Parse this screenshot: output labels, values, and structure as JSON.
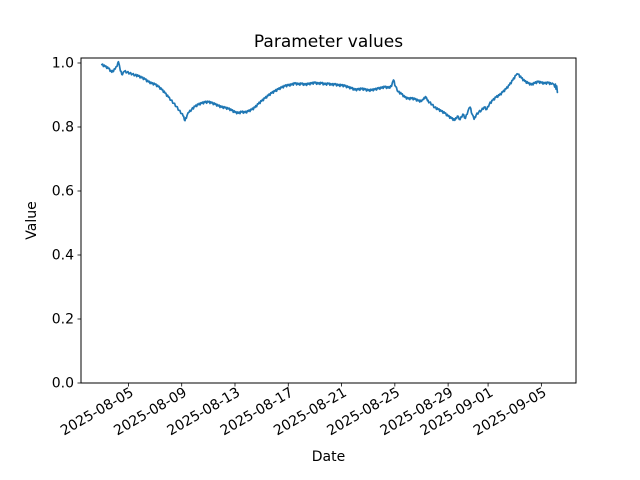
{
  "figure": {
    "title": "Parameter values",
    "xlabel": "Date",
    "ylabel": "Value"
  },
  "chart_data": {
    "type": "line",
    "title": "Parameter values",
    "xlabel": "Date",
    "ylabel": "Value",
    "legend": "none",
    "grid": false,
    "line_color": "#1f77b4",
    "background_color": "#ffffff",
    "x_axis_type": "date",
    "x_origin_date": "2025-08-03",
    "xlim_days": [
      -1.56,
      35.6
    ],
    "ylim": [
      0.0,
      1.0156
    ],
    "y_ticks": [
      {
        "label": "0.0",
        "value": 0.0
      },
      {
        "label": "0.2",
        "value": 0.2
      },
      {
        "label": "0.4",
        "value": 0.4
      },
      {
        "label": "0.6",
        "value": 0.6
      },
      {
        "label": "0.8",
        "value": 0.8
      },
      {
        "label": "1.0",
        "value": 1.0
      }
    ],
    "x_ticks": [
      {
        "label": "2025-08-05",
        "day": 2
      },
      {
        "label": "2025-08-09",
        "day": 6
      },
      {
        "label": "2025-08-13",
        "day": 10
      },
      {
        "label": "2025-08-17",
        "day": 14
      },
      {
        "label": "2025-08-21",
        "day": 18
      },
      {
        "label": "2025-08-25",
        "day": 22
      },
      {
        "label": "2025-08-29",
        "day": 26
      },
      {
        "label": "2025-09-01",
        "day": 29
      },
      {
        "label": "2025-09-05",
        "day": 33
      }
    ],
    "x_tick_rotation_deg": 30,
    "noise_amplitude": 0.003,
    "series": [
      {
        "name": "parameter-value",
        "points": [
          [
            0,
            0.995
          ],
          [
            0.25,
            0.989
          ],
          [
            0.5,
            0.983
          ],
          [
            0.75,
            0.971
          ],
          [
            1,
            0.981
          ],
          [
            1.15,
            0.99
          ],
          [
            1.25,
            1.004
          ],
          [
            1.4,
            0.975
          ],
          [
            1.55,
            0.963
          ],
          [
            1.7,
            0.974
          ],
          [
            1.9,
            0.971
          ],
          [
            2.1,
            0.968
          ],
          [
            2.3,
            0.965
          ],
          [
            2.5,
            0.962
          ],
          [
            2.75,
            0.959
          ],
          [
            3,
            0.954
          ],
          [
            3.25,
            0.949
          ],
          [
            3.5,
            0.941
          ],
          [
            3.75,
            0.936
          ],
          [
            4,
            0.933
          ],
          [
            4.25,
            0.926
          ],
          [
            4.5,
            0.917
          ],
          [
            4.75,
            0.906
          ],
          [
            5,
            0.893
          ],
          [
            5.2,
            0.884
          ],
          [
            5.4,
            0.874
          ],
          [
            5.6,
            0.864
          ],
          [
            5.8,
            0.852
          ],
          [
            6,
            0.842
          ],
          [
            6.1,
            0.835
          ],
          [
            6.25,
            0.82
          ],
          [
            6.4,
            0.836
          ],
          [
            6.55,
            0.846
          ],
          [
            6.75,
            0.855
          ],
          [
            7,
            0.864
          ],
          [
            7.25,
            0.87
          ],
          [
            7.5,
            0.874
          ],
          [
            7.75,
            0.877
          ],
          [
            8,
            0.878
          ],
          [
            8.25,
            0.875
          ],
          [
            8.5,
            0.871
          ],
          [
            8.75,
            0.866
          ],
          [
            9,
            0.862
          ],
          [
            9.25,
            0.86
          ],
          [
            9.5,
            0.857
          ],
          [
            9.75,
            0.852
          ],
          [
            10,
            0.846
          ],
          [
            10.25,
            0.843
          ],
          [
            10.5,
            0.847
          ],
          [
            10.75,
            0.845
          ],
          [
            11,
            0.849
          ],
          [
            11.25,
            0.854
          ],
          [
            11.5,
            0.861
          ],
          [
            11.75,
            0.872
          ],
          [
            12,
            0.881
          ],
          [
            12.25,
            0.89
          ],
          [
            12.5,
            0.898
          ],
          [
            12.75,
            0.906
          ],
          [
            13,
            0.912
          ],
          [
            13.25,
            0.918
          ],
          [
            13.5,
            0.923
          ],
          [
            13.75,
            0.928
          ],
          [
            14,
            0.93
          ],
          [
            14.25,
            0.932
          ],
          [
            14.5,
            0.936
          ],
          [
            14.75,
            0.933
          ],
          [
            15,
            0.935
          ],
          [
            15.25,
            0.932
          ],
          [
            15.5,
            0.934
          ],
          [
            15.75,
            0.936
          ],
          [
            16,
            0.938
          ],
          [
            16.25,
            0.935
          ],
          [
            16.5,
            0.937
          ],
          [
            16.75,
            0.933
          ],
          [
            17,
            0.935
          ],
          [
            17.25,
            0.932
          ],
          [
            17.5,
            0.933
          ],
          [
            17.75,
            0.93
          ],
          [
            18,
            0.93
          ],
          [
            18.25,
            0.928
          ],
          [
            18.5,
            0.924
          ],
          [
            18.75,
            0.921
          ],
          [
            19,
            0.916
          ],
          [
            19.25,
            0.917
          ],
          [
            19.5,
            0.919
          ],
          [
            19.75,
            0.917
          ],
          [
            20,
            0.914
          ],
          [
            20.25,
            0.915
          ],
          [
            20.5,
            0.917
          ],
          [
            20.75,
            0.92
          ],
          [
            21,
            0.922
          ],
          [
            21.25,
            0.925
          ],
          [
            21.5,
            0.922
          ],
          [
            21.75,
            0.927
          ],
          [
            21.9,
            0.947
          ],
          [
            22.05,
            0.927
          ],
          [
            22.25,
            0.91
          ],
          [
            22.5,
            0.903
          ],
          [
            22.75,
            0.893
          ],
          [
            23,
            0.888
          ],
          [
            23.25,
            0.889
          ],
          [
            23.5,
            0.887
          ],
          [
            23.75,
            0.882
          ],
          [
            24,
            0.88
          ],
          [
            24.15,
            0.886
          ],
          [
            24.3,
            0.895
          ],
          [
            24.45,
            0.882
          ],
          [
            24.6,
            0.877
          ],
          [
            24.8,
            0.87
          ],
          [
            25,
            0.861
          ],
          [
            25.25,
            0.855
          ],
          [
            25.5,
            0.849
          ],
          [
            25.75,
            0.843
          ],
          [
            26,
            0.834
          ],
          [
            26.25,
            0.827
          ],
          [
            26.5,
            0.821
          ],
          [
            26.7,
            0.834
          ],
          [
            26.9,
            0.823
          ],
          [
            27.1,
            0.84
          ],
          [
            27.3,
            0.827
          ],
          [
            27.5,
            0.851
          ],
          [
            27.65,
            0.862
          ],
          [
            27.8,
            0.84
          ],
          [
            27.95,
            0.824
          ],
          [
            28.1,
            0.837
          ],
          [
            28.3,
            0.847
          ],
          [
            28.5,
            0.852
          ],
          [
            28.7,
            0.862
          ],
          [
            28.9,
            0.855
          ],
          [
            29.1,
            0.872
          ],
          [
            29.35,
            0.883
          ],
          [
            29.6,
            0.893
          ],
          [
            29.85,
            0.899
          ],
          [
            30.1,
            0.909
          ],
          [
            30.35,
            0.919
          ],
          [
            30.6,
            0.931
          ],
          [
            30.85,
            0.946
          ],
          [
            31.1,
            0.962
          ],
          [
            31.25,
            0.965
          ],
          [
            31.5,
            0.953
          ],
          [
            31.75,
            0.943
          ],
          [
            32,
            0.937
          ],
          [
            32.25,
            0.932
          ],
          [
            32.5,
            0.937
          ],
          [
            32.75,
            0.941
          ],
          [
            33,
            0.938
          ],
          [
            33.25,
            0.936
          ],
          [
            33.5,
            0.938
          ],
          [
            33.75,
            0.934
          ],
          [
            33.9,
            0.934
          ],
          [
            34,
            0.925
          ],
          [
            34.05,
            0.934
          ],
          [
            34.1,
            0.918
          ],
          [
            34.15,
            0.928
          ],
          [
            34.2,
            0.908
          ]
        ]
      }
    ]
  }
}
